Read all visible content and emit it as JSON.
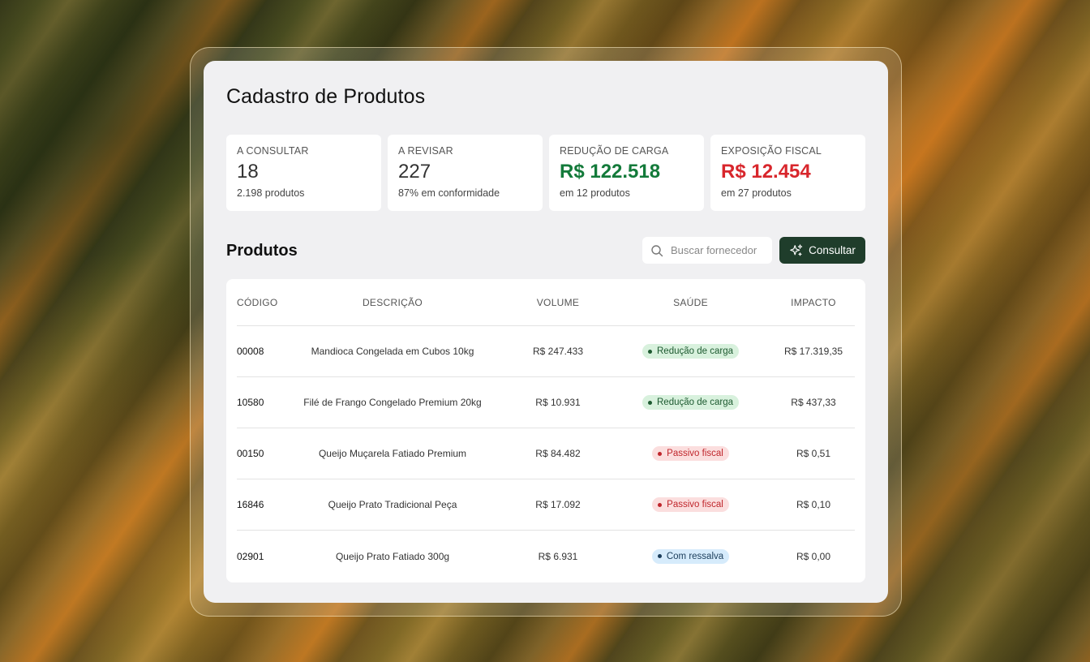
{
  "page": {
    "title": "Cadastro de Produtos"
  },
  "cards": [
    {
      "label": "A CONSULTAR",
      "value": "18",
      "sub": "2.198 produtos",
      "tone": "neutral"
    },
    {
      "label": "A REVISAR",
      "value": "227",
      "sub": "87% em conformidade",
      "tone": "neutral"
    },
    {
      "label": "REDUÇÃO DE CARGA",
      "value": "R$ 122.518",
      "sub": "em 12 produtos",
      "tone": "green"
    },
    {
      "label": "EXPOSIÇÃO FISCAL",
      "value": "R$ 12.454",
      "sub": "em 27 produtos",
      "tone": "red"
    }
  ],
  "section": {
    "title": "Produtos"
  },
  "search": {
    "placeholder": "Buscar fornecedor",
    "icon": "search-icon"
  },
  "actions": {
    "consult_label": "Consultar",
    "consult_icon": "sparkle-icon"
  },
  "table": {
    "headers": [
      "CÓDIGO",
      "DESCRIÇÃO",
      "VOLUME",
      "SAÚDE",
      "IMPACTO"
    ],
    "rows": [
      {
        "code": "00008",
        "description": "Mandioca Congelada em Cubos 10kg",
        "volume": "R$ 247.433",
        "health": "Redução de carga",
        "health_tone": "green",
        "impact": "R$ 17.319,35"
      },
      {
        "code": "10580",
        "description": "Filé de Frango Congelado Premium 20kg",
        "volume": "R$ 10.931",
        "health": "Redução de carga",
        "health_tone": "green",
        "impact": "R$ 437,33"
      },
      {
        "code": "00150",
        "description": "Queijo Muçarela Fatiado Premium",
        "volume": "R$ 84.482",
        "health": "Passivo fiscal",
        "health_tone": "red",
        "impact": "R$ 0,51"
      },
      {
        "code": "16846",
        "description": "Queijo Prato Tradicional Peça",
        "volume": "R$ 17.092",
        "health": "Passivo fiscal",
        "health_tone": "red",
        "impact": "R$ 0,10"
      },
      {
        "code": "02901",
        "description": "Queijo Prato Fatiado 300g",
        "volume": "R$ 6.931",
        "health": "Com ressalva",
        "health_tone": "blue",
        "impact": "R$ 0,00"
      }
    ]
  },
  "colors": {
    "accent_button": "#1f3d2b",
    "positive": "#137a3a",
    "negative": "#d8262c"
  }
}
